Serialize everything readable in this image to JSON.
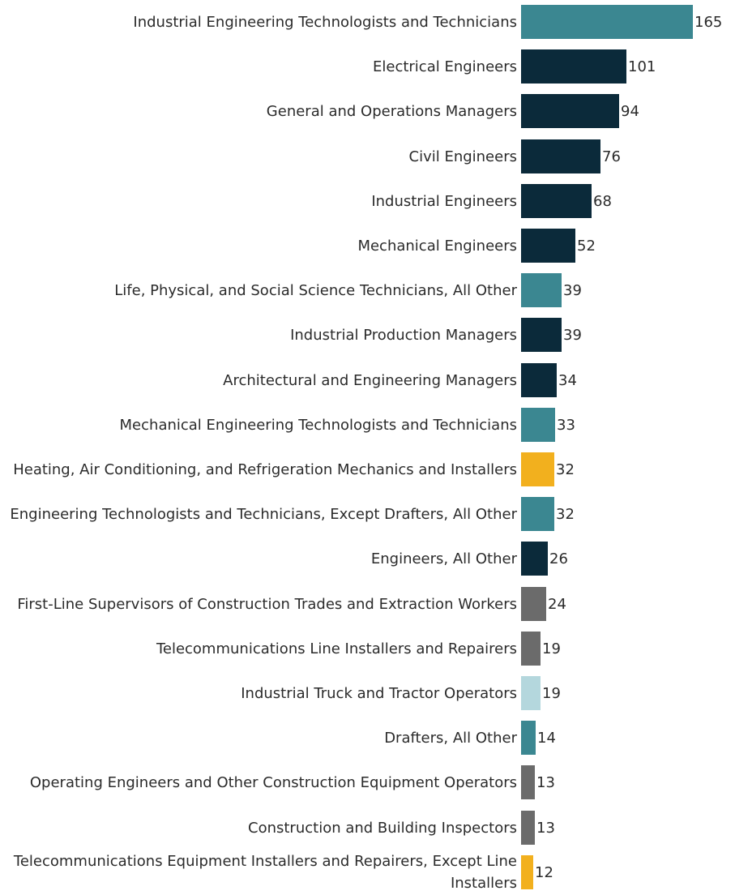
{
  "chart_data": {
    "type": "bar",
    "orientation": "horizontal",
    "title": "",
    "xlabel": "",
    "ylabel": "",
    "xlim": [
      0,
      165
    ],
    "grid": false,
    "legend": "none",
    "colors": {
      "teal": "#3b8791",
      "navy": "#0b2a3a",
      "gold": "#f2b01e",
      "gray": "#6b6b6b",
      "lightblue": "#b4d7dd"
    },
    "categories": [
      "Industrial Engineering Technologists and Technicians",
      "Electrical Engineers",
      "General and Operations Managers",
      "Civil Engineers",
      "Industrial Engineers",
      "Mechanical Engineers",
      "Life, Physical, and Social Science Technicians, All Other",
      "Industrial Production Managers",
      "Architectural and Engineering Managers",
      "Mechanical Engineering Technologists and Technicians",
      "Heating, Air Conditioning, and Refrigeration Mechanics and Installers",
      "Engineering Technologists and Technicians, Except Drafters, All Other",
      "Engineers, All Other",
      "First-Line Supervisors of Construction Trades and Extraction Workers",
      "Telecommunications Line Installers and Repairers",
      "Industrial Truck and Tractor Operators",
      "Drafters, All Other",
      "Operating Engineers and Other Construction Equipment Operators",
      "Construction and Building Inspectors",
      "Telecommunications Equipment Installers and Repairers, Except Line Installers"
    ],
    "values": [
      165,
      101,
      94,
      76,
      68,
      52,
      39,
      39,
      34,
      33,
      32,
      32,
      26,
      24,
      19,
      19,
      14,
      13,
      13,
      12
    ],
    "bar_colors": [
      "teal",
      "navy",
      "navy",
      "navy",
      "navy",
      "navy",
      "teal",
      "navy",
      "navy",
      "teal",
      "gold",
      "teal",
      "navy",
      "gray",
      "gray",
      "lightblue",
      "teal",
      "gray",
      "gray",
      "gold"
    ]
  }
}
